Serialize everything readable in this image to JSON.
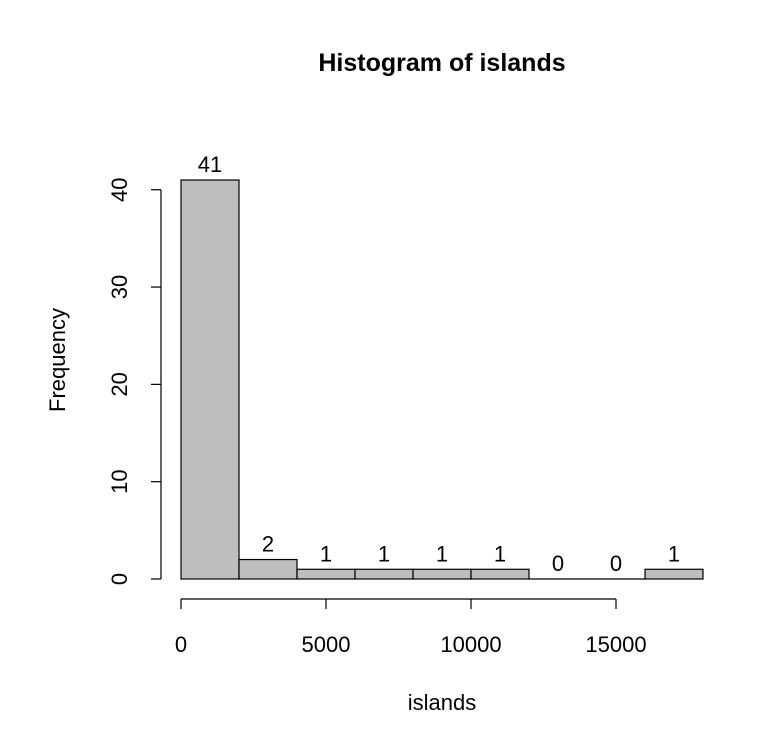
{
  "chart_data": {
    "type": "bar",
    "title": "Histogram of islands",
    "xlabel": "islands",
    "ylabel": "Frequency",
    "bin_edges": [
      0,
      2000,
      4000,
      6000,
      8000,
      10000,
      12000,
      14000,
      16000,
      18000
    ],
    "values": [
      41,
      2,
      1,
      1,
      1,
      1,
      0,
      0,
      1
    ],
    "data_labels": [
      "41",
      "2",
      "1",
      "1",
      "1",
      "1",
      "0",
      "0",
      "1"
    ],
    "xlim": [
      0,
      18000
    ],
    "ylim": [
      0,
      41
    ],
    "x_ticks": [
      0,
      5000,
      10000,
      15000
    ],
    "x_tick_labels": [
      "0",
      "5000",
      "10000",
      "15000"
    ],
    "y_ticks": [
      0,
      10,
      20,
      30,
      40
    ],
    "y_tick_labels": [
      "0",
      "10",
      "20",
      "30",
      "40"
    ],
    "bar_color": "#bebebe",
    "edge_color": "#000000",
    "grid": false,
    "legend": "none"
  }
}
